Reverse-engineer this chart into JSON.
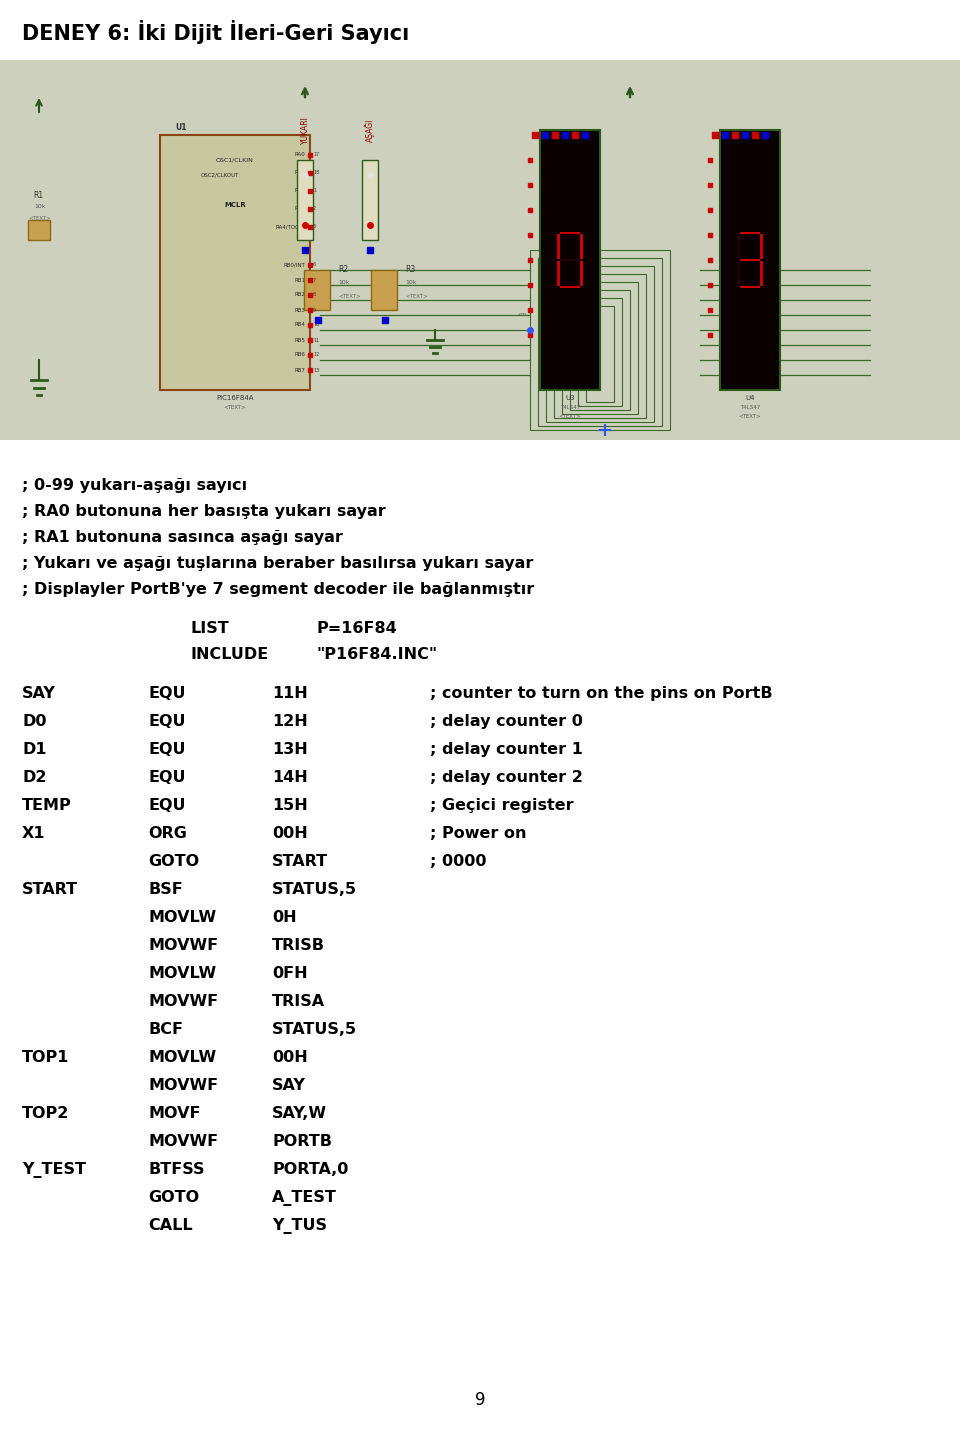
{
  "title": "DENEY 6: İki Dijit İleri-Geri Sayıcı",
  "bg_color": "#ffffff",
  "circuit_bg": "#cdd0bc",
  "text_color": "#000000",
  "comment_lines": [
    [
      "; 0-99 yukarı-aşağı sayıcı",
      true
    ],
    [
      "; RA0 butonuna her basışta yukarı sayar",
      false
    ],
    [
      "; RA1 butonuna sasınca aşağı sayar",
      false
    ],
    [
      "; Yukarı ve aşağı tuşlarına beraber basılırsa yukarı sayar",
      false
    ],
    [
      "; Displayler PortB'ye 7 segment decoder ile bağlanmıştır",
      false
    ]
  ],
  "code_lines": [
    [
      "",
      "LIST",
      "P=16F84",
      "",
      1
    ],
    [
      "",
      "INCLUDE",
      "\"P16F84.INC\"",
      "",
      1
    ],
    [
      "",
      "",
      "",
      "",
      0
    ],
    [
      "SAY",
      "EQU",
      "11H",
      "; counter to turn on the pins on PortB",
      1
    ],
    [
      "D0",
      "EQU",
      "12H",
      "; delay counter 0",
      1
    ],
    [
      "D1",
      "EQU",
      "13H",
      "; delay counter 1",
      1
    ],
    [
      "D2",
      "EQU",
      "14H",
      "; delay counter 2",
      1
    ],
    [
      "TEMP",
      "EQU",
      "15H",
      "; Geçici register",
      1
    ],
    [
      "X1",
      "ORG",
      "00H",
      "; Power on",
      1
    ],
    [
      "",
      "GOTO",
      "START",
      "; 0000",
      1
    ],
    [
      "START",
      "BSF",
      "STATUS,5",
      "",
      1
    ],
    [
      "",
      "MOVLW",
      "0H",
      "",
      1
    ],
    [
      "",
      "MOVWF",
      "TRISB",
      "",
      1
    ],
    [
      "",
      "MOVLW",
      "0FH",
      "",
      1
    ],
    [
      "",
      "MOVWF",
      "TRISA",
      "",
      1
    ],
    [
      "",
      "BCF",
      "STATUS,5",
      "",
      1
    ],
    [
      "TOP1",
      "MOVLW",
      "00H",
      "",
      1
    ],
    [
      "",
      "MOVWF",
      "SAY",
      "",
      1
    ],
    [
      "TOP2",
      "MOVF",
      "SAY,W",
      "",
      1
    ],
    [
      "",
      "MOVWF",
      "PORTB",
      "",
      1
    ],
    [
      "Y_TEST",
      "BTFSS",
      "PORTA,0",
      "",
      1
    ],
    [
      "",
      "GOTO",
      "A_TEST",
      "",
      1
    ],
    [
      "",
      "CALL",
      "Y_TUS",
      "",
      1
    ]
  ],
  "page_number": "9",
  "green_dark": "#2d5a1b",
  "green_line": "#3a6b28",
  "red_seg": "#cc0000",
  "red_off": "#2a0000",
  "chip_fill": "#c8c8a0",
  "chip_border": "#8b4513"
}
